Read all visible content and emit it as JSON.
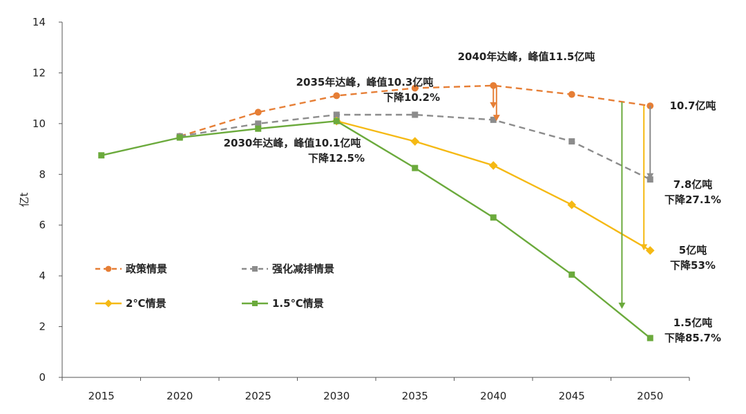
{
  "chart_data": {
    "type": "line",
    "ylabel": "亿t",
    "ylim": [
      0,
      14
    ],
    "yticks": [
      "0",
      "2",
      "4",
      "6",
      "8",
      "10",
      "12",
      "14"
    ],
    "x": [
      2015,
      2020,
      2025,
      2030,
      2035,
      2040,
      2045,
      2050
    ],
    "xtick_labels": [
      "2015",
      "2020",
      "2025",
      "2030",
      "2035",
      "2040",
      "2045",
      "2050"
    ],
    "grid": false,
    "legend_position": "left-bottom inside",
    "series": [
      {
        "name": "政策情景",
        "color": "#E67E35",
        "dash": "dashed",
        "marker": "circle",
        "x": [
          2020,
          2025,
          2030,
          2035,
          2040,
          2045,
          2050
        ],
        "values": [
          9.5,
          10.45,
          11.1,
          11.4,
          11.5,
          11.15,
          10.7
        ]
      },
      {
        "name": "强化减排情景",
        "color": "#8C8C8C",
        "dash": "dashed",
        "marker": "square",
        "x": [
          2020,
          2025,
          2030,
          2035,
          2040,
          2045,
          2050
        ],
        "values": [
          9.5,
          10.0,
          10.35,
          10.35,
          10.15,
          9.3,
          7.8
        ]
      },
      {
        "name": "2℃情景",
        "color": "#F5B914",
        "dash": "solid",
        "marker": "diamond",
        "x": [
          2030,
          2035,
          2040,
          2045,
          2050
        ],
        "values": [
          10.1,
          9.3,
          8.35,
          6.8,
          5.0
        ]
      },
      {
        "name": "1.5℃情景",
        "color": "#6BAA3C",
        "dash": "solid",
        "marker": "square",
        "x": [
          2015,
          2020,
          2025,
          2030,
          2035,
          2040,
          2045,
          2050
        ],
        "values": [
          8.75,
          9.45,
          9.8,
          10.1,
          8.25,
          6.3,
          4.05,
          1.55
        ]
      }
    ],
    "annotations": [
      {
        "lines": [
          "2040年达峰，峰值11.5亿吨"
        ]
      },
      {
        "lines": [
          "2035年达峰，峰值10.3亿吨",
          "下降10.2%"
        ]
      },
      {
        "lines": [
          "2030年达峰，峰值10.1亿吨",
          "下降12.5%"
        ]
      },
      {
        "lines": [
          "10.7亿吨"
        ]
      },
      {
        "lines": [
          "7.8亿吨",
          "下降27.1%"
        ]
      },
      {
        "lines": [
          "5亿吨",
          "下降53%"
        ]
      },
      {
        "lines": [
          "1.5亿吨",
          "下降85.7%"
        ]
      }
    ],
    "arrows": [
      {
        "color": "#E67E35",
        "x": 2040,
        "from": 11.5,
        "to": 10.6
      },
      {
        "color": "#E67E35",
        "x": 2040.2,
        "from": 11.5,
        "to": 10.1
      },
      {
        "color": "#8C8C8C",
        "x": 2050,
        "from": 10.7,
        "to": 7.8
      },
      {
        "color": "#F5B914",
        "x": 2049.6,
        "from": 10.7,
        "to": 5.0
      },
      {
        "color": "#6BAA3C",
        "x": 2048.2,
        "from": 10.85,
        "to": 2.7
      }
    ]
  }
}
